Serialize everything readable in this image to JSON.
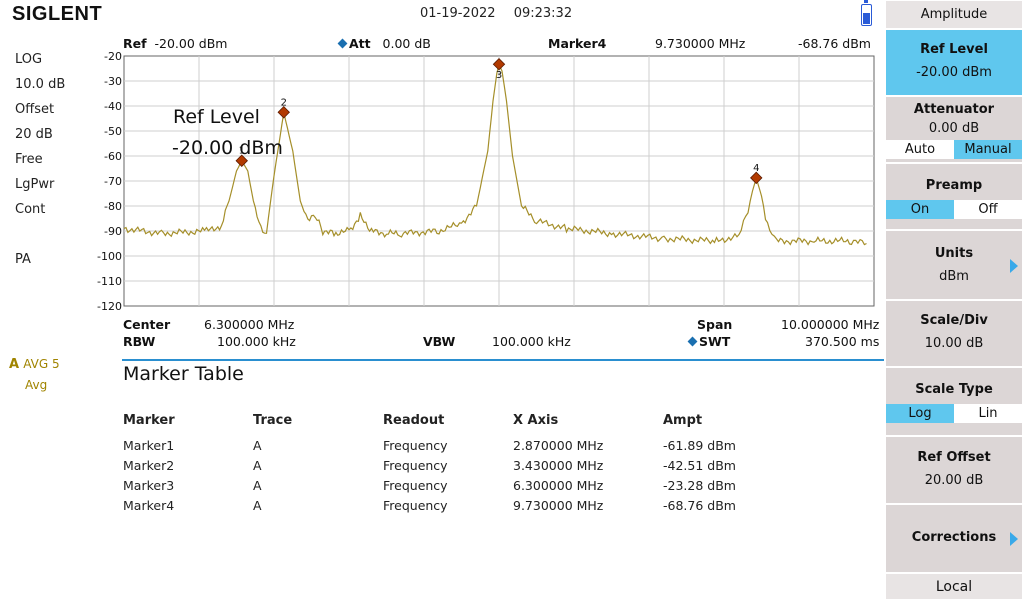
{
  "header": {
    "logo": "SIGLENT",
    "date": "01-19-2022",
    "time": "09:23:32"
  },
  "left_status": {
    "items": [
      "LOG",
      "10.0 dB",
      "Offset",
      "20 dB",
      "Free",
      "LgPwr",
      "Cont",
      "PA"
    ],
    "trace_letter": "A",
    "avg": "AVG 5",
    "avg_mode": "Avg"
  },
  "top_info": {
    "ref_label": "Ref",
    "ref_value": "-20.00 dBm",
    "att_label": "Att",
    "att_value": "0.00 dB",
    "marker_label": "Marker4",
    "marker_freq": "9.730000 MHz",
    "marker_ampt": "-68.76 dBm"
  },
  "annotation": {
    "line1": "Ref Level",
    "line2": "-20.00 dBm"
  },
  "chart_data": {
    "type": "line",
    "y_ticks": [
      "-20",
      "-30",
      "-40",
      "-50",
      "-60",
      "-70",
      "-80",
      "-90",
      "-100",
      "-110",
      "-120"
    ],
    "ylim": [
      -120,
      -20
    ],
    "xlim": [
      1.3,
      11.3
    ],
    "grid": true,
    "trace_color": "#a58f2a",
    "series": [
      {
        "x": [
          1.3,
          1.8,
          2.4,
          2.6,
          2.7,
          2.8,
          2.87,
          2.95,
          3.05,
          3.15,
          3.2,
          3.3,
          3.43,
          3.55,
          3.65,
          3.75,
          3.85,
          3.95,
          4.1,
          4.3,
          4.45,
          4.6,
          4.8,
          5.0,
          5.5,
          5.8,
          6.0,
          6.15,
          6.22,
          6.27,
          6.3,
          6.34,
          6.4,
          6.48,
          6.6,
          6.8,
          7.2,
          7.8,
          8.5,
          9.2,
          9.5,
          9.62,
          9.68,
          9.73,
          9.8,
          9.88,
          10.0,
          10.5,
          11.0,
          11.2
        ],
        "values": [
          -89,
          -91,
          -90,
          -88,
          -78,
          -66,
          -61.9,
          -66,
          -82,
          -91,
          -90,
          -68,
          -42.5,
          -58,
          -78,
          -86,
          -84,
          -90,
          -91,
          -90,
          -84,
          -90,
          -91,
          -91,
          -90,
          -87,
          -80,
          -58,
          -38,
          -27,
          -23.3,
          -26,
          -38,
          -60,
          -80,
          -86,
          -89,
          -91,
          -93,
          -94,
          -92,
          -82,
          -74,
          -68.8,
          -76,
          -88,
          -94,
          -94,
          -94,
          -95
        ]
      }
    ],
    "markers": [
      {
        "label": "1",
        "x": 2.87,
        "y": -61.89
      },
      {
        "label": "2",
        "x": 3.43,
        "y": -42.51
      },
      {
        "label": "3",
        "x": 6.3,
        "y": -23.28
      },
      {
        "label": "4",
        "x": 9.73,
        "y": -68.76
      }
    ]
  },
  "bottom_info": {
    "center_label": "Center",
    "center_value": "6.300000 MHz",
    "span_label": "Span",
    "span_value": "10.000000 MHz",
    "rbw_label": "RBW",
    "rbw_value": "100.000 kHz",
    "vbw_label": "VBW",
    "vbw_value": "100.000 kHz",
    "swt_label": "SWT",
    "swt_value": "370.500 ms"
  },
  "marker_table": {
    "title": "Marker Table",
    "headers": [
      "Marker",
      "Trace",
      "Readout",
      "X Axis",
      "Ampt"
    ],
    "rows": [
      [
        "Marker1",
        "A",
        "Frequency",
        "2.870000 MHz",
        "-61.89 dBm"
      ],
      [
        "Marker2",
        "A",
        "Frequency",
        "3.430000 MHz",
        "-42.51 dBm"
      ],
      [
        "Marker3",
        "A",
        "Frequency",
        "6.300000 MHz",
        "-23.28 dBm"
      ],
      [
        "Marker4",
        "A",
        "Frequency",
        "9.730000 MHz",
        "-68.76 dBm"
      ]
    ]
  },
  "softkeys": {
    "menu_title": "Amplitude",
    "ref_level": {
      "title": "Ref Level",
      "value": "-20.00 dBm"
    },
    "attenuator": {
      "title": "Attenuator",
      "value": "0.00 dB",
      "opt1": "Auto",
      "opt2": "Manual"
    },
    "preamp": {
      "title": "Preamp",
      "opt1": "On",
      "opt2": "Off"
    },
    "units": {
      "title": "Units",
      "value": "dBm"
    },
    "scale_div": {
      "title": "Scale/Div",
      "value": "10.00 dB"
    },
    "scale_type": {
      "title": "Scale Type",
      "opt1": "Log",
      "opt2": "Lin"
    },
    "ref_offset": {
      "title": "Ref Offset",
      "value": "20.00 dB"
    },
    "corrections": {
      "title": "Corrections"
    },
    "local": "Local"
  }
}
